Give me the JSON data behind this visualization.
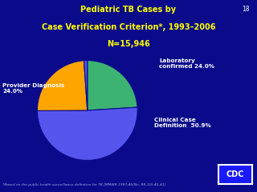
{
  "title_line1": "Pediatric TB Cases by",
  "title_line2": "Case Verification Criterion*, 1993–2006",
  "title_line3": "N=15,946",
  "title_color": "#FFFF00",
  "background_color": "#0A0A8B",
  "footnote": "*Based on the public health surveillance definition for TB [MMWR 1997;46(No. RR-10):40-41]",
  "footnote_color": "#AAAADD",
  "slide_number": "18",
  "wedge_sizes": [
    24.0,
    50.9,
    24.0,
    1.1
  ],
  "wedge_colors": [
    "#3CB371",
    "#5555EE",
    "#FFA500",
    "#5555EE"
  ],
  "startangle": 90
}
